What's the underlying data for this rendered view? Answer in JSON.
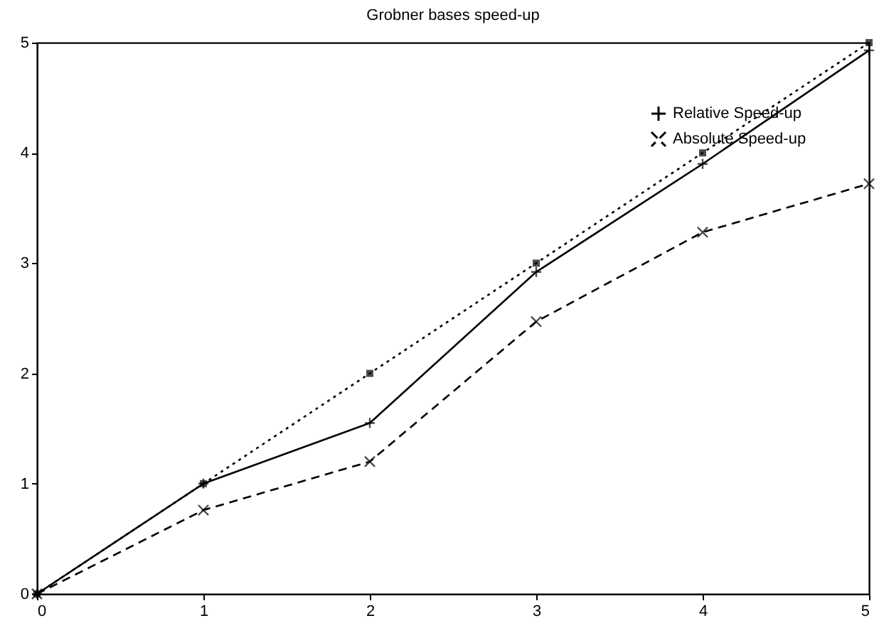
{
  "chart_data": {
    "type": "line",
    "title": "Grobner bases speed-up",
    "x": [
      0,
      1,
      2,
      3,
      4,
      5
    ],
    "series": [
      {
        "name": "Relative Speed-up",
        "color": "#000000",
        "values": [
          0,
          1,
          1.55,
          2.92,
          3.9,
          4.93
        ],
        "line_style": "solid",
        "marker": "plus"
      },
      {
        "name": "Absolute Speed-up",
        "color": "#000000",
        "values": [
          0,
          0.76,
          1.2,
          2.47,
          3.28,
          3.72
        ],
        "line_style": "dashed",
        "marker": "cross"
      },
      {
        "color": "#000000",
        "values": [
          0,
          1,
          2,
          3,
          4,
          5
        ],
        "line_style": "dotted",
        "marker": "square"
      }
    ],
    "xlim": [
      0,
      5
    ],
    "ylim": [
      0,
      5
    ],
    "xticks": [
      0,
      1,
      2,
      3,
      4,
      5
    ],
    "yticks": [
      0,
      1,
      2,
      3,
      4,
      5
    ],
    "grid": false,
    "legend": "top right"
  }
}
